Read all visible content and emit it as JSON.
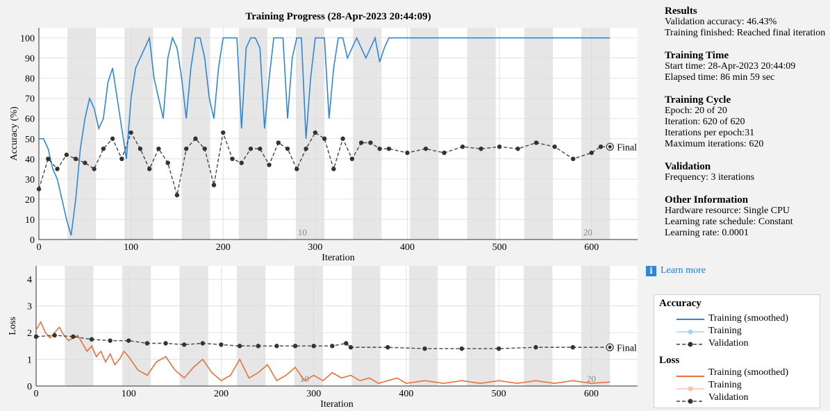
{
  "chart_data": [
    {
      "type": "line",
      "title": "Training Progress (28-Apr-2023 20:44:09)",
      "xlabel": "Iteration",
      "ylabel": "Accuracy (%)",
      "xlim": [
        0,
        650
      ],
      "ylim": [
        0,
        105
      ],
      "xticks": [
        0,
        100,
        200,
        300,
        400,
        500,
        600
      ],
      "yticks": [
        0,
        10,
        20,
        30,
        40,
        50,
        60,
        70,
        80,
        90,
        100
      ],
      "epoch_labels": [
        {
          "text": "10",
          "x": 286
        },
        {
          "text": "20",
          "x": 596
        }
      ],
      "epoch_length": 31,
      "final_label": "Final",
      "series": [
        {
          "name": "Training (smoothed)",
          "color": "#2f86d6",
          "x": [
            0,
            5,
            10,
            15,
            20,
            25,
            30,
            35,
            40,
            45,
            50,
            55,
            60,
            65,
            70,
            75,
            80,
            85,
            90,
            95,
            100,
            105,
            110,
            115,
            120,
            125,
            130,
            135,
            140,
            145,
            150,
            155,
            160,
            165,
            170,
            175,
            180,
            185,
            190,
            195,
            200,
            205,
            210,
            215,
            220,
            225,
            230,
            235,
            240,
            245,
            250,
            255,
            260,
            265,
            270,
            275,
            280,
            285,
            290,
            295,
            300,
            305,
            310,
            315,
            320,
            325,
            330,
            335,
            340,
            345,
            350,
            355,
            360,
            365,
            370,
            375,
            380,
            620
          ],
          "y": [
            50,
            50,
            45,
            35,
            30,
            20,
            10,
            2,
            20,
            45,
            60,
            70,
            65,
            55,
            60,
            78,
            85,
            70,
            55,
            40,
            70,
            85,
            90,
            95,
            100,
            80,
            70,
            60,
            90,
            100,
            95,
            80,
            60,
            85,
            100,
            100,
            90,
            70,
            60,
            85,
            100,
            100,
            100,
            100,
            55,
            95,
            100,
            100,
            95,
            55,
            80,
            100,
            100,
            100,
            60,
            90,
            100,
            100,
            50,
            80,
            100,
            100,
            100,
            60,
            85,
            100,
            100,
            90,
            95,
            100,
            95,
            90,
            95,
            100,
            88,
            95,
            100,
            100
          ]
        },
        {
          "name": "Validation",
          "color": "#444444",
          "x": [
            0,
            10,
            20,
            30,
            40,
            50,
            60,
            70,
            80,
            90,
            100,
            110,
            120,
            130,
            140,
            150,
            160,
            170,
            180,
            190,
            200,
            210,
            220,
            230,
            240,
            250,
            260,
            270,
            280,
            290,
            300,
            310,
            320,
            330,
            340,
            350,
            360,
            370,
            380,
            400,
            420,
            440,
            460,
            480,
            500,
            520,
            540,
            560,
            580,
            600,
            610,
            620
          ],
          "y": [
            25,
            40,
            35,
            42,
            40,
            38,
            35,
            45,
            50,
            40,
            53,
            45,
            35,
            45,
            38,
            22,
            45,
            50,
            45,
            27,
            53,
            40,
            38,
            45,
            45,
            37,
            48,
            45,
            35,
            45,
            53,
            50,
            35,
            50,
            40,
            48,
            48,
            45,
            45,
            43,
            45,
            43,
            46,
            45,
            46,
            45,
            48,
            46,
            40,
            43,
            46,
            46
          ]
        }
      ]
    },
    {
      "type": "line",
      "title": "",
      "xlabel": "Iteration",
      "ylabel": "Loss",
      "xlim": [
        0,
        650
      ],
      "ylim": [
        0,
        4.5
      ],
      "xticks": [
        0,
        100,
        200,
        300,
        400,
        500,
        600
      ],
      "yticks": [
        0,
        1,
        2,
        3,
        4
      ],
      "epoch_labels": [
        {
          "text": "10",
          "x": 290
        },
        {
          "text": "20",
          "x": 600
        }
      ],
      "epoch_length": 31,
      "final_label": "Final",
      "series": [
        {
          "name": "Training (smoothed)",
          "color": "#e8703a",
          "x": [
            0,
            5,
            10,
            15,
            20,
            25,
            30,
            35,
            40,
            45,
            50,
            55,
            60,
            65,
            70,
            75,
            80,
            85,
            90,
            95,
            100,
            110,
            120,
            130,
            140,
            150,
            160,
            170,
            180,
            190,
            200,
            210,
            220,
            230,
            240,
            250,
            260,
            270,
            280,
            290,
            300,
            310,
            320,
            330,
            340,
            350,
            360,
            370,
            380,
            390,
            400,
            420,
            440,
            460,
            480,
            500,
            520,
            540,
            560,
            580,
            600,
            620
          ],
          "y": [
            2.1,
            2.4,
            2.0,
            1.8,
            2.0,
            2.2,
            1.9,
            1.7,
            1.8,
            1.9,
            1.6,
            1.3,
            1.5,
            1.1,
            1.3,
            0.9,
            1.2,
            0.8,
            1.0,
            1.3,
            1.1,
            0.6,
            0.4,
            0.9,
            1.1,
            0.6,
            0.3,
            0.7,
            1.0,
            0.5,
            0.2,
            0.4,
            1.0,
            0.3,
            0.5,
            0.8,
            0.2,
            0.4,
            0.7,
            0.2,
            0.4,
            0.2,
            0.5,
            0.3,
            0.4,
            0.2,
            0.3,
            0.1,
            0.2,
            0.3,
            0.1,
            0.2,
            0.1,
            0.2,
            0.1,
            0.2,
            0.1,
            0.2,
            0.1,
            0.2,
            0.1,
            0.15
          ]
        },
        {
          "name": "Validation",
          "color": "#444444",
          "x": [
            0,
            20,
            40,
            60,
            80,
            100,
            120,
            140,
            160,
            180,
            200,
            220,
            240,
            260,
            280,
            300,
            320,
            335,
            340,
            380,
            420,
            460,
            500,
            540,
            580,
            620
          ],
          "y": [
            1.85,
            1.9,
            1.85,
            1.75,
            1.7,
            1.7,
            1.6,
            1.6,
            1.55,
            1.6,
            1.55,
            1.5,
            1.5,
            1.5,
            1.5,
            1.5,
            1.5,
            1.6,
            1.45,
            1.45,
            1.4,
            1.4,
            1.4,
            1.45,
            1.45,
            1.45
          ]
        }
      ]
    }
  ],
  "info": {
    "results_heading": "Results",
    "validation_accuracy": "Validation accuracy: 46.43%",
    "training_finished": "Training finished: Reached final iteration",
    "time_heading": "Training Time",
    "start_time": "Start time: 28-Apr-2023 20:44:09",
    "elapsed_time": "Elapsed time: 86 min 59 sec",
    "cycle_heading": "Training Cycle",
    "epoch": "Epoch: 20 of 20",
    "iteration": "Iteration: 620 of 620",
    "iterations_per_epoch": "Iterations per epoch:31",
    "max_iterations": "Maximum iterations: 620",
    "validation_heading": "Validation",
    "frequency": "Frequency: 3 iterations",
    "other_heading": "Other Information",
    "hardware": "Hardware resource: Single CPU",
    "lr_schedule": "Learning rate schedule: Constant",
    "learning_rate": "Learning rate: 0.0001"
  },
  "learn_more": "Learn more",
  "legend": {
    "accuracy_heading": "Accuracy",
    "acc_smoothed": "Training (smoothed)",
    "acc_training": "Training",
    "acc_validation": "Validation",
    "loss_heading": "Loss",
    "loss_smoothed": "Training (smoothed)",
    "loss_training": "Training",
    "loss_validation": "Validation"
  }
}
